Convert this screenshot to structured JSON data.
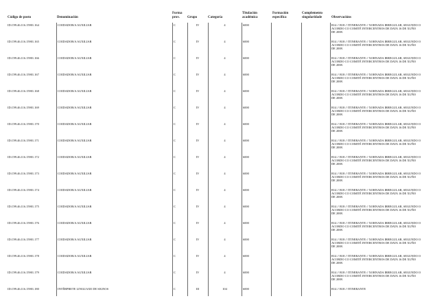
{
  "headers": {
    "codigo": "Código de posto",
    "denominacion": "Denominación",
    "forma": "Forma prov.",
    "grupo": "Grupo",
    "categoria": "Categoría",
    "titulacion": "Titulación académica",
    "formacion": "Formación específica",
    "complemento": "Complemento singularidade",
    "observacions": "Observacións"
  },
  "rows": [
    {
      "codigo": "ID.C99.46.116.15901.164",
      "denominacion": "COIDADOR/A AUXILIAR",
      "forma": "C",
      "grupo": "IV",
      "categoria": "4",
      "titulacion": "6000",
      "obs": "B14 // B18 // ITINERANTE // XORNADA IRREGULAR, SEGUNDO O ACORDO CO COMITÉ INTERCENTROS DE DATA 16 DE XUÑO DE 2008."
    },
    {
      "codigo": "ID.C99.46.116.15901.165",
      "denominacion": "COIDADOR/A AUXILIAR",
      "forma": "C",
      "grupo": "IV",
      "categoria": "4",
      "titulacion": "6000",
      "obs": "B14 // B18 // ITINERANTE // XORNADA IRREGULAR, SEGUNDO O ACORDO CO COMITÉ INTERCENTROS DE DATA 16 DE XUÑO DE 2008."
    },
    {
      "codigo": "ID.C99.46.116.15901.166",
      "denominacion": "COIDADOR/A AUXILIAR",
      "forma": "C",
      "grupo": "IV",
      "categoria": "4",
      "titulacion": "6000",
      "obs": "B14 // B18 // ITINERANTE // XORNADA IRREGULAR, SEGUNDO O ACORDO CO COMITÉ INTERCENTROS DE DATA 16 DE XUÑO DE 2008."
    },
    {
      "codigo": "ID.C99.46.116.15901.167",
      "denominacion": "COIDADOR/A AUXILIAR",
      "forma": "C",
      "grupo": "IV",
      "categoria": "4",
      "titulacion": "6000",
      "obs": "B14 // B18 // ITINERANTE // XORNADA IRREGULAR, SEGUNDO O ACORDO CO COMITÉ INTERCENTROS DE DATA 16 DE XUÑO DE 2008."
    },
    {
      "codigo": "ID.C99.46.116.15901.168",
      "denominacion": "COIDADOR/A AUXILIAR",
      "forma": "C",
      "grupo": "IV",
      "categoria": "4",
      "titulacion": "6000",
      "obs": "B14 // B18 // ITINERANTE // XORNADA IRREGULAR, SEGUNDO O ACORDO CO COMITÉ INTERCENTROS DE DATA 16 DE XUÑO DE 2008."
    },
    {
      "codigo": "ID.C99.46.116.15901.169",
      "denominacion": "COIDADOR/A AUXILIAR",
      "forma": "C",
      "grupo": "IV",
      "categoria": "4",
      "titulacion": "6000",
      "obs": "B14 // B18 // ITINERANTE // XORNADA IRREGULAR, SEGUNDO O ACORDO CO COMITÉ INTERCENTROS DE DATA 16 DE XUÑO DE 2008."
    },
    {
      "codigo": "ID.C99.46.116.15901.170",
      "denominacion": "COIDADOR/A AUXILIAR",
      "forma": "C",
      "grupo": "IV",
      "categoria": "4",
      "titulacion": "6000",
      "obs": "B14 // B18 // ITINERANTE // XORNADA IRREGULAR, SEGUNDO O ACORDO CO COMITÉ INTERCENTROS DE DATA 16 DE XUÑO DE 2008."
    },
    {
      "codigo": "ID.C99.46.116.15901.171",
      "denominacion": "COIDADOR/A AUXILIAR",
      "forma": "C",
      "grupo": "IV",
      "categoria": "4",
      "titulacion": "6000",
      "obs": "B14 // B18 // ITINERANTE // XORNADA IRREGULAR, SEGUNDO O ACORDO CO COMITÉ INTERCENTROS DE DATA 16 DE XUÑO DE 2008."
    },
    {
      "codigo": "ID.C99.46.116.15901.172",
      "denominacion": "COIDADOR/A AUXILIAR",
      "forma": "C",
      "grupo": "IV",
      "categoria": "4",
      "titulacion": "6000",
      "obs": "B14 // B18 // ITINERANTE // XORNADA IRREGULAR, SEGUNDO O ACORDO CO COMITÉ INTERCENTROS DE DATA 16 DE XUÑO DE 2008."
    },
    {
      "codigo": "ID.C99.46.116.15901.173",
      "denominacion": "COIDADOR/A AUXILIAR",
      "forma": "C",
      "grupo": "IV",
      "categoria": "4",
      "titulacion": "6000",
      "obs": "B14 // B18 // ITINERANTE // XORNADA IRREGULAR, SEGUNDO O ACORDO CO COMITÉ INTERCENTROS DE DATA 16 DE XUÑO DE 2008."
    },
    {
      "codigo": "ID.C99.46.116.15901.174",
      "denominacion": "COIDADOR/A AUXILIAR",
      "forma": "C",
      "grupo": "IV",
      "categoria": "4",
      "titulacion": "6000",
      "obs": "B14 // B18 // ITINERANTE // XORNADA IRREGULAR, SEGUNDO O ACORDO CO COMITÉ INTERCENTROS DE DATA 16 DE XUÑO DE 2008."
    },
    {
      "codigo": "ID.C99.46.116.15901.175",
      "denominacion": "COIDADOR/A AUXILIAR",
      "forma": "C",
      "grupo": "IV",
      "categoria": "4",
      "titulacion": "6000",
      "obs": "B14 // B18 // ITINERANTE // XORNADA IRREGULAR, SEGUNDO O ACORDO CO COMITÉ INTERCENTROS DE DATA 16 DE XUÑO DE 2008."
    },
    {
      "codigo": "ID.C99.46.116.15901.176",
      "denominacion": "COIDADOR/A AUXILIAR",
      "forma": "C",
      "grupo": "IV",
      "categoria": "4",
      "titulacion": "6000",
      "obs": "B14 // B18 // ITINERANTE // XORNADA IRREGULAR, SEGUNDO O ACORDO CO COMITÉ INTERCENTROS DE DATA 16 DE XUÑO DE 2008."
    },
    {
      "codigo": "ID.C99.46.116.15901.177",
      "denominacion": "COIDADOR/A AUXILIAR",
      "forma": "C",
      "grupo": "IV",
      "categoria": "4",
      "titulacion": "6000",
      "obs": "B14 // B18 // ITINERANTE // XORNADA IRREGULAR, SEGUNDO O ACORDO CO COMITÉ INTERCENTROS DE DATA 16 DE XUÑO DE 2008."
    },
    {
      "codigo": "ID.C99.46.116.15901.178",
      "denominacion": "COIDADOR/A AUXILIAR",
      "forma": "C",
      "grupo": "IV",
      "categoria": "4",
      "titulacion": "6000",
      "obs": "B14 // B18 // ITINERANTE // XORNADA IRREGULAR, SEGUNDO O ACORDO CO COMITÉ INTERCENTROS DE DATA 16 DE XUÑO DE 2008."
    },
    {
      "codigo": "ID.C99.46.116.15901.179",
      "denominacion": "COIDADOR/A AUXILIAR",
      "forma": "C",
      "grupo": "IV",
      "categoria": "4",
      "titulacion": "6000",
      "obs": "B14 // B18 // ITINERANTE // XORNADA IRREGULAR, SEGUNDO O ACORDO CO COMITÉ INTERCENTROS DE DATA 16 DE XUÑO DE 2008."
    },
    {
      "codigo": "ID.C99.46.116.15901.180",
      "denominacion": "INTÉRPRETE LINGUAXE DE SIGNOS",
      "forma": "C",
      "grupo": "III",
      "categoria": "104",
      "titulacion": "6000",
      "obs": "B14 // B18 // ITINERANTE"
    }
  ]
}
